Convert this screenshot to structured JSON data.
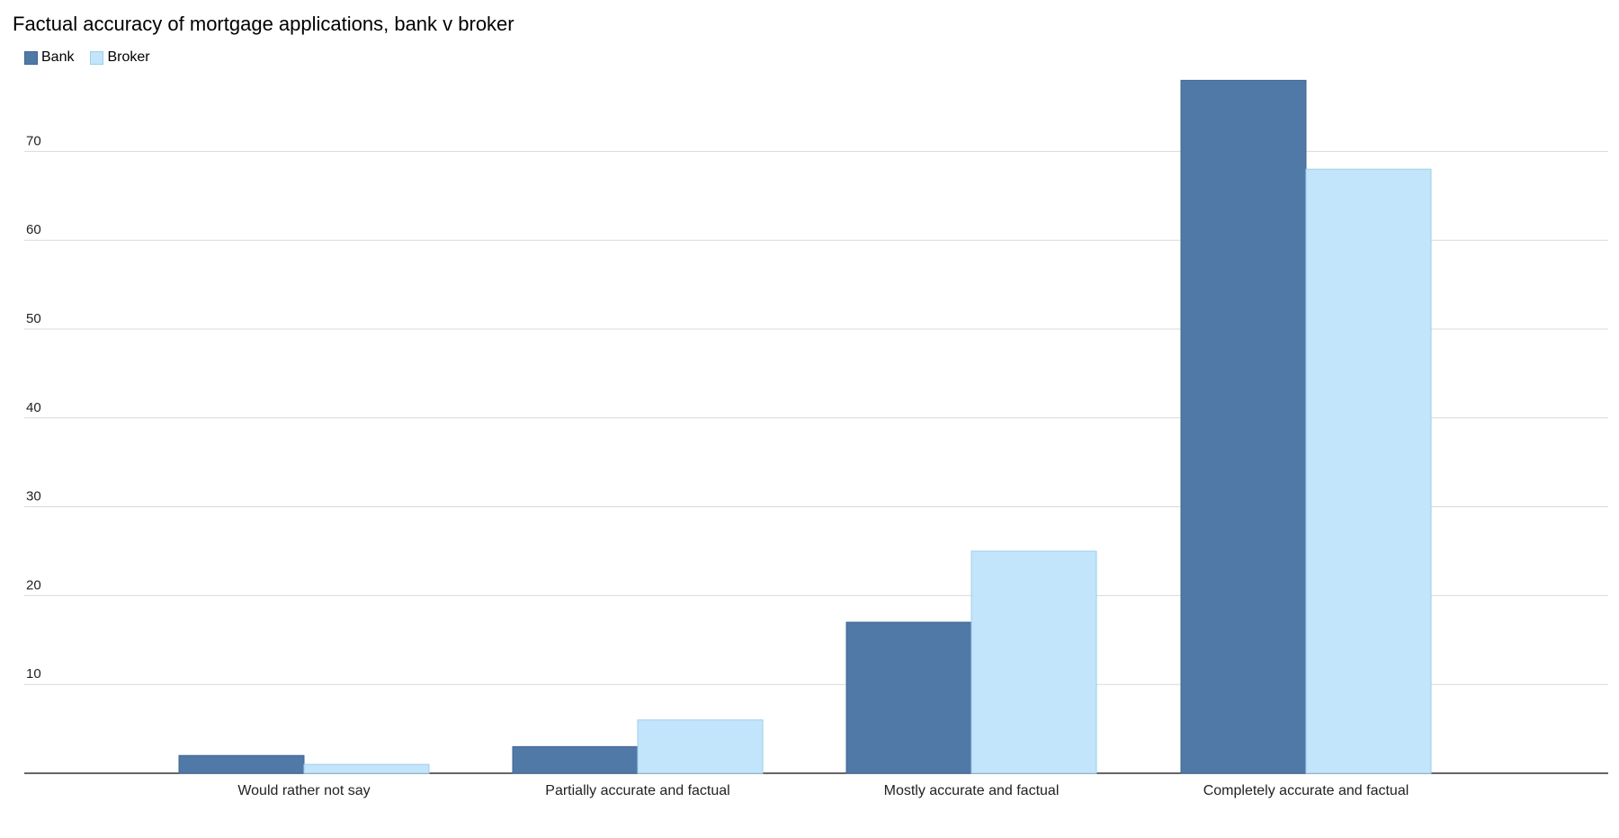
{
  "chart_data": {
    "type": "bar",
    "title": "Factual accuracy of mortgage applications, bank v broker",
    "xlabel": "",
    "ylabel": "",
    "categories": [
      "Would rather not say",
      "Partially accurate and factual",
      "Mostly accurate and factual",
      "Completely accurate and factual"
    ],
    "series": [
      {
        "name": "Bank",
        "color": "#5079a8",
        "values": [
          2,
          3,
          17,
          78
        ]
      },
      {
        "name": "Broker",
        "color": "#c2e5fc",
        "values": [
          1,
          6,
          25,
          68
        ]
      }
    ],
    "ylim": [
      0,
      80
    ],
    "yticks": [
      10,
      20,
      30,
      40,
      50,
      60,
      70
    ],
    "grid": true,
    "legend_position": "top-left"
  }
}
